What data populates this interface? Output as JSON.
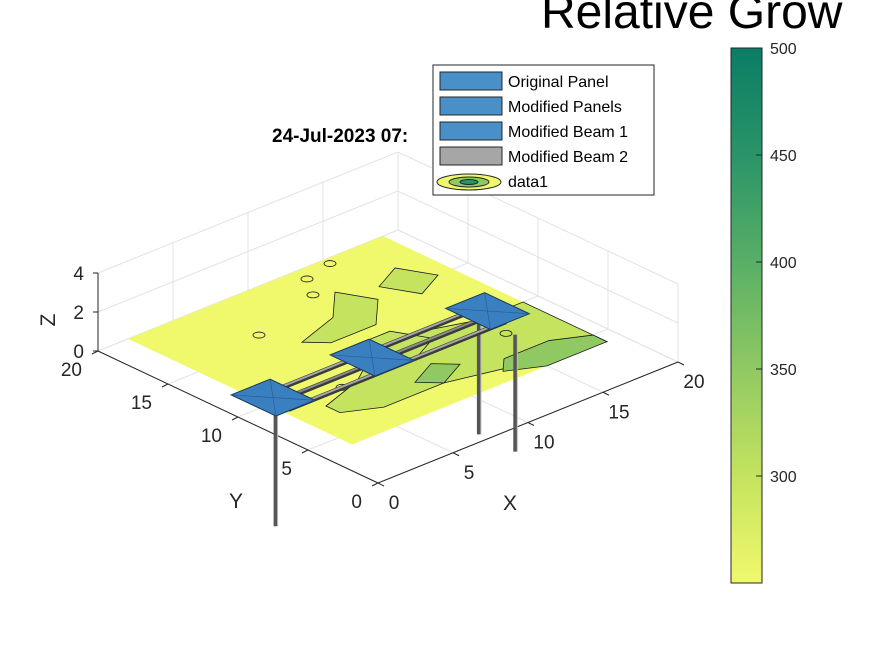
{
  "chart_data": {
    "type": "3d-surface-contour",
    "title": "Relative Grow",
    "subtitle": "24-Jul-2023 07:",
    "xlabel": "X",
    "ylabel": "Y",
    "zlabel": "Z",
    "xlim": [
      0,
      20
    ],
    "ylim": [
      0,
      20
    ],
    "zlim": [
      0,
      4
    ],
    "x_ticks": [
      "0",
      "5",
      "10",
      "15",
      "20"
    ],
    "y_ticks": [
      "0",
      "5",
      "10",
      "15",
      "20"
    ],
    "z_ticks": [
      "0",
      "2",
      "4"
    ],
    "grid": true,
    "legend": {
      "placement": "top-right",
      "entries": [
        {
          "label": "Original Panel",
          "color": "#4a90c8"
        },
        {
          "label": "Modified Panels",
          "color": "#4a90c8"
        },
        {
          "label": "Modified Beam 1",
          "color": "#4a90c8"
        },
        {
          "label": "Modified Beam 2",
          "color": "#a6a6a6"
        },
        {
          "label": "data1",
          "color": "#f5f36a"
        }
      ]
    },
    "colorbar": {
      "ticks": [
        "500",
        "450",
        "400",
        "350",
        "300"
      ],
      "range": [
        250,
        500
      ],
      "colormap": [
        "#f0f96b",
        "#c4e35f",
        "#90c962",
        "#58af66",
        "#2a9468",
        "#0a7d66"
      ]
    }
  }
}
